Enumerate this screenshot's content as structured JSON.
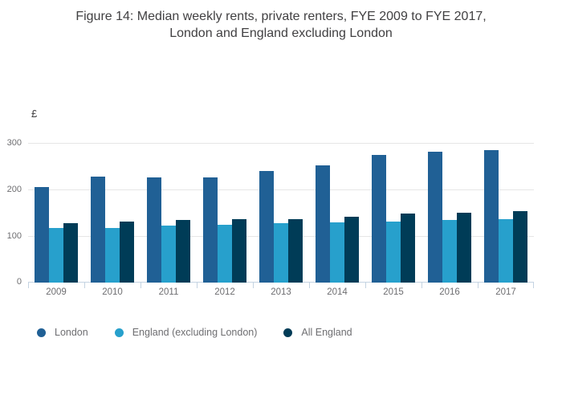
{
  "title": {
    "full": "Figure 14: Median weekly rents, private renters, FYE 2009 to FYE 2017, London and England excluding London",
    "line1": "Figure 14: Median weekly rents, private renters, FYE 2009 to FYE 2017,",
    "line2": "London and England excluding London"
  },
  "colors": {
    "title_text": "#414042",
    "axis_text": "#6e6e71",
    "gridline": "#e6e6e6",
    "axis_line": "#c4d3e2",
    "background": "#ffffff"
  },
  "chart_data": {
    "type": "bar",
    "title": "Figure 14: Median weekly rents, private renters, FYE 2009 to FYE 2017, London and England excluding London",
    "unit_label": "£",
    "xlabel": "",
    "ylabel": "£",
    "categories": [
      "2009",
      "2010",
      "2011",
      "2012",
      "2013",
      "2014",
      "2015",
      "2016",
      "2017"
    ],
    "series": [
      {
        "name": "London",
        "color": "#206095",
        "values": [
          207,
          229,
          228,
          228,
          242,
          254,
          277,
          284,
          287
        ]
      },
      {
        "name": "England (excluding London)",
        "color": "#27a0cc",
        "values": [
          118,
          118,
          123,
          126,
          128,
          131,
          133,
          136,
          138
        ]
      },
      {
        "name": "All England",
        "color": "#003c57",
        "values": [
          129,
          132,
          135,
          138,
          138,
          143,
          150,
          151,
          155
        ]
      }
    ],
    "ylim": [
      0,
      300
    ],
    "yticks": [
      0,
      100,
      200,
      300
    ],
    "grid": true,
    "legend_position": "bottom"
  }
}
